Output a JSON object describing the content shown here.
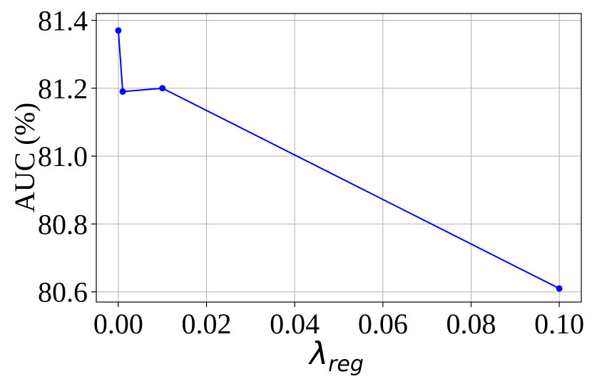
{
  "chart_data": {
    "type": "line",
    "title": "",
    "xlabel": "λ",
    "xlabel_subscript": "reg",
    "ylabel": "AUC (%)",
    "xlim": [
      -0.005,
      0.105
    ],
    "ylim": [
      80.57,
      81.42
    ],
    "xticks": [
      0.0,
      0.02,
      0.04,
      0.06,
      0.08,
      0.1
    ],
    "xtick_labels": [
      "0.00",
      "0.02",
      "0.04",
      "0.06",
      "0.08",
      "0.10"
    ],
    "yticks": [
      80.6,
      80.8,
      81.0,
      81.2,
      81.4
    ],
    "ytick_labels": [
      "80.6",
      "80.8",
      "81.0",
      "81.2",
      "81.4"
    ],
    "grid": true,
    "series": [
      {
        "color": "#0000ff",
        "marker": "circle",
        "x": [
          0.0,
          0.001,
          0.01,
          0.1
        ],
        "y": [
          81.37,
          81.19,
          81.2,
          80.61
        ]
      }
    ]
  }
}
